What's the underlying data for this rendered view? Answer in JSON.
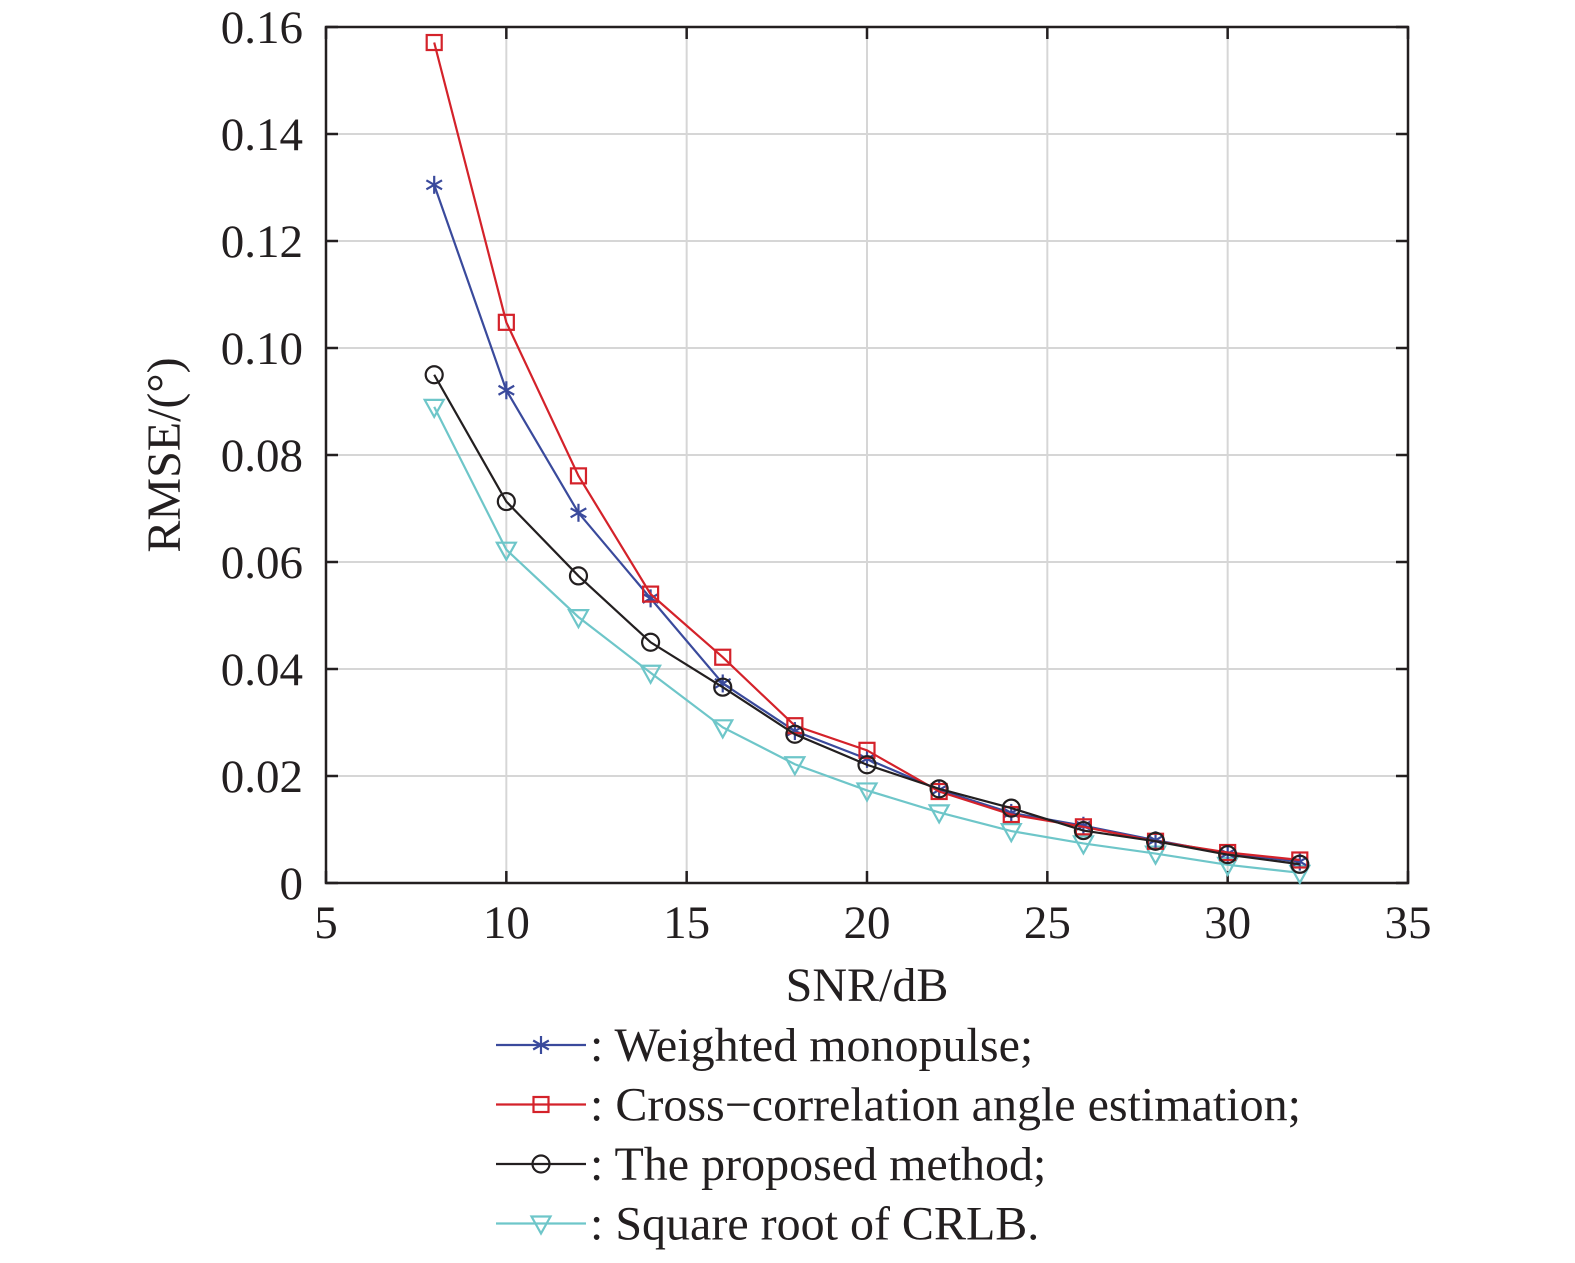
{
  "chart_data": {
    "type": "line",
    "title": "",
    "xlabel": "SNR/dB",
    "ylabel": "RMSE/(°)",
    "xlim": [
      5,
      35
    ],
    "ylim": [
      0,
      0.16
    ],
    "xticks": [
      5,
      10,
      15,
      20,
      25,
      30,
      35
    ],
    "yticks": [
      0,
      0.02,
      0.04,
      0.06,
      0.08,
      0.1,
      0.12,
      0.14,
      0.16
    ],
    "xtick_labels": [
      "5",
      "10",
      "15",
      "20",
      "25",
      "30",
      "35"
    ],
    "ytick_labels": [
      "0",
      "0.02",
      "0.04",
      "0.06",
      "0.08",
      "0.10",
      "0.12",
      "0.14",
      "0.16"
    ],
    "grid": true,
    "legend_position": "below",
    "x": [
      8,
      10,
      12,
      14,
      16,
      18,
      20,
      22,
      24,
      26,
      28,
      30,
      32
    ],
    "series": [
      {
        "name": ": Weighted monopulse;",
        "marker": "asterisk",
        "color": "#3a4a9c",
        "values": [
          0.1305,
          0.0921,
          0.0692,
          0.0532,
          0.0373,
          0.0284,
          0.0232,
          0.0174,
          0.0131,
          0.0107,
          0.008,
          0.0055,
          0.004
        ]
      },
      {
        "name": ": Cross−correlation angle estimation;",
        "marker": "square",
        "color": "#d4222a",
        "values": [
          0.1571,
          0.1048,
          0.0761,
          0.054,
          0.0422,
          0.0294,
          0.0248,
          0.0171,
          0.0128,
          0.0105,
          0.0078,
          0.0057,
          0.0043
        ]
      },
      {
        "name": ": The proposed method;",
        "marker": "circle",
        "color": "#231f20",
        "values": [
          0.095,
          0.0713,
          0.0574,
          0.045,
          0.0366,
          0.0278,
          0.0221,
          0.0176,
          0.014,
          0.0098,
          0.0078,
          0.0053,
          0.0035
        ]
      },
      {
        "name": ": Square root of CRLB.",
        "marker": "triangle-down",
        "color": "#6ec6c9",
        "values": [
          0.089,
          0.0623,
          0.0497,
          0.0393,
          0.0291,
          0.0222,
          0.0173,
          0.0132,
          0.0097,
          0.0074,
          0.0055,
          0.0034,
          0.0019
        ]
      }
    ]
  }
}
